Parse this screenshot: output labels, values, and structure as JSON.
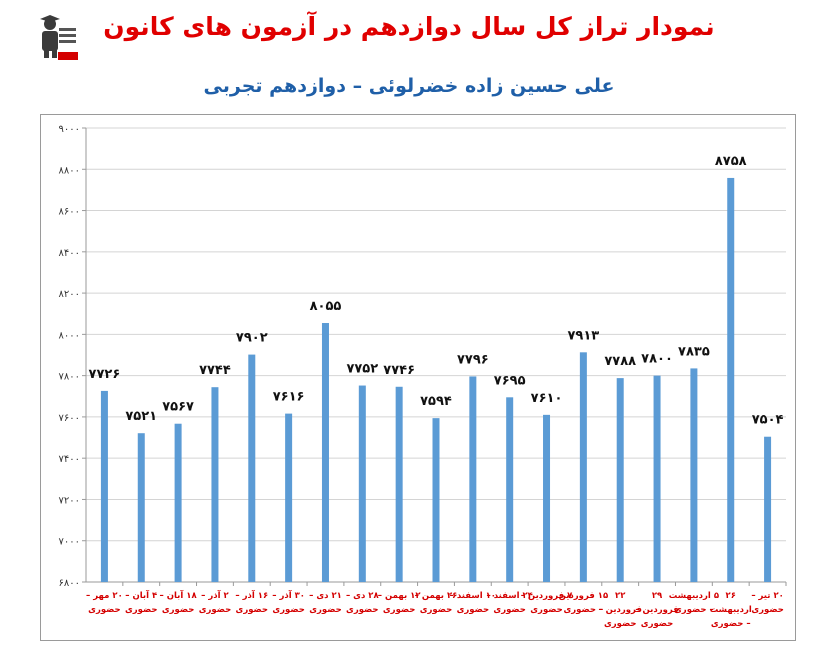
{
  "title": "نمودار تراز کل سال دوازدهم در آزمون های کانون",
  "subtitle": "علی حسین زاده خضرلوئی – دوازدهم تجربی",
  "logo": {
    "icon": "student-graduate-logo-icon",
    "bg_color": "#3b3b3b",
    "band_color": "#d40000"
  },
  "colors": {
    "title": "#e00000",
    "subtitle": "#1f5fa8",
    "bar": "#5b9bd5",
    "category_label": "#d40000"
  },
  "chart_data": {
    "type": "bar",
    "title": "",
    "xlabel": "",
    "ylabel": "",
    "ylim": [
      6800,
      9000
    ],
    "yticks": [
      6800,
      7000,
      7200,
      7400,
      7600,
      7800,
      8000,
      8200,
      8400,
      8600,
      8800,
      9000
    ],
    "ytick_labels": [
      "۶۸۰۰",
      "۷۰۰۰",
      "۷۲۰۰",
      "۷۴۰۰",
      "۷۶۰۰",
      "۷۸۰۰",
      "۸۰۰۰",
      "۸۲۰۰",
      "۸۴۰۰",
      "۸۶۰۰",
      "۸۸۰۰",
      "۹۰۰۰"
    ],
    "grid": "horizontal",
    "legend": "none",
    "categories": [
      [
        "۲۰ مهر –",
        "حضوری"
      ],
      [
        "۴ آبان –",
        "حضوری"
      ],
      [
        "۱۸ آبان –",
        "حضوری"
      ],
      [
        "۲ آذر –",
        "حضوری"
      ],
      [
        "۱۶ آذر –",
        "حضوری"
      ],
      [
        "۳۰ آذر –",
        "حضوری"
      ],
      [
        "۲۱ دی –",
        "حضوری"
      ],
      [
        "۲۸ دی –",
        "حضوری"
      ],
      [
        "۱۲ بهمن –",
        "حضوری"
      ],
      [
        "۲۶ بهمن –",
        "حضوری"
      ],
      [
        "۱۰ اسفند –",
        "حضوری"
      ],
      [
        "۲۴ اسفند –",
        "حضوری"
      ],
      [
        "۷ فروردین –",
        "حضوری"
      ],
      [
        "۱۵ فروردین",
        "– حضوری"
      ],
      [
        "۲۲",
        "فروردین –",
        "حضوری"
      ],
      [
        "۲۹",
        "فروردین –",
        "حضوری"
      ],
      [
        "۵ اردیبهشت",
        "– حضوری"
      ],
      [
        "۲۶",
        "اردیبهشت",
        "– حضوری"
      ],
      [
        "۲۰ تیر –",
        "حضوری"
      ]
    ],
    "values": [
      7726,
      7521,
      7567,
      7744,
      7902,
      7616,
      8055,
      7752,
      7746,
      7594,
      7796,
      7695,
      7610,
      7913,
      7788,
      7800,
      7835,
      8758,
      7504
    ],
    "value_labels": [
      "۷۷۲۶",
      "۷۵۲۱",
      "۷۵۶۷",
      "۷۷۴۴",
      "۷۹۰۲",
      "۷۶۱۶",
      "۸۰۵۵",
      "۷۷۵۲",
      "۷۷۴۶",
      "۷۵۹۴",
      "۷۷۹۶",
      "۷۶۹۵",
      "۷۶۱۰",
      "۷۹۱۳",
      "۷۷۸۸",
      "۷۸۰۰",
      "۷۸۳۵",
      "۸۷۵۸",
      "۷۵۰۴"
    ]
  }
}
